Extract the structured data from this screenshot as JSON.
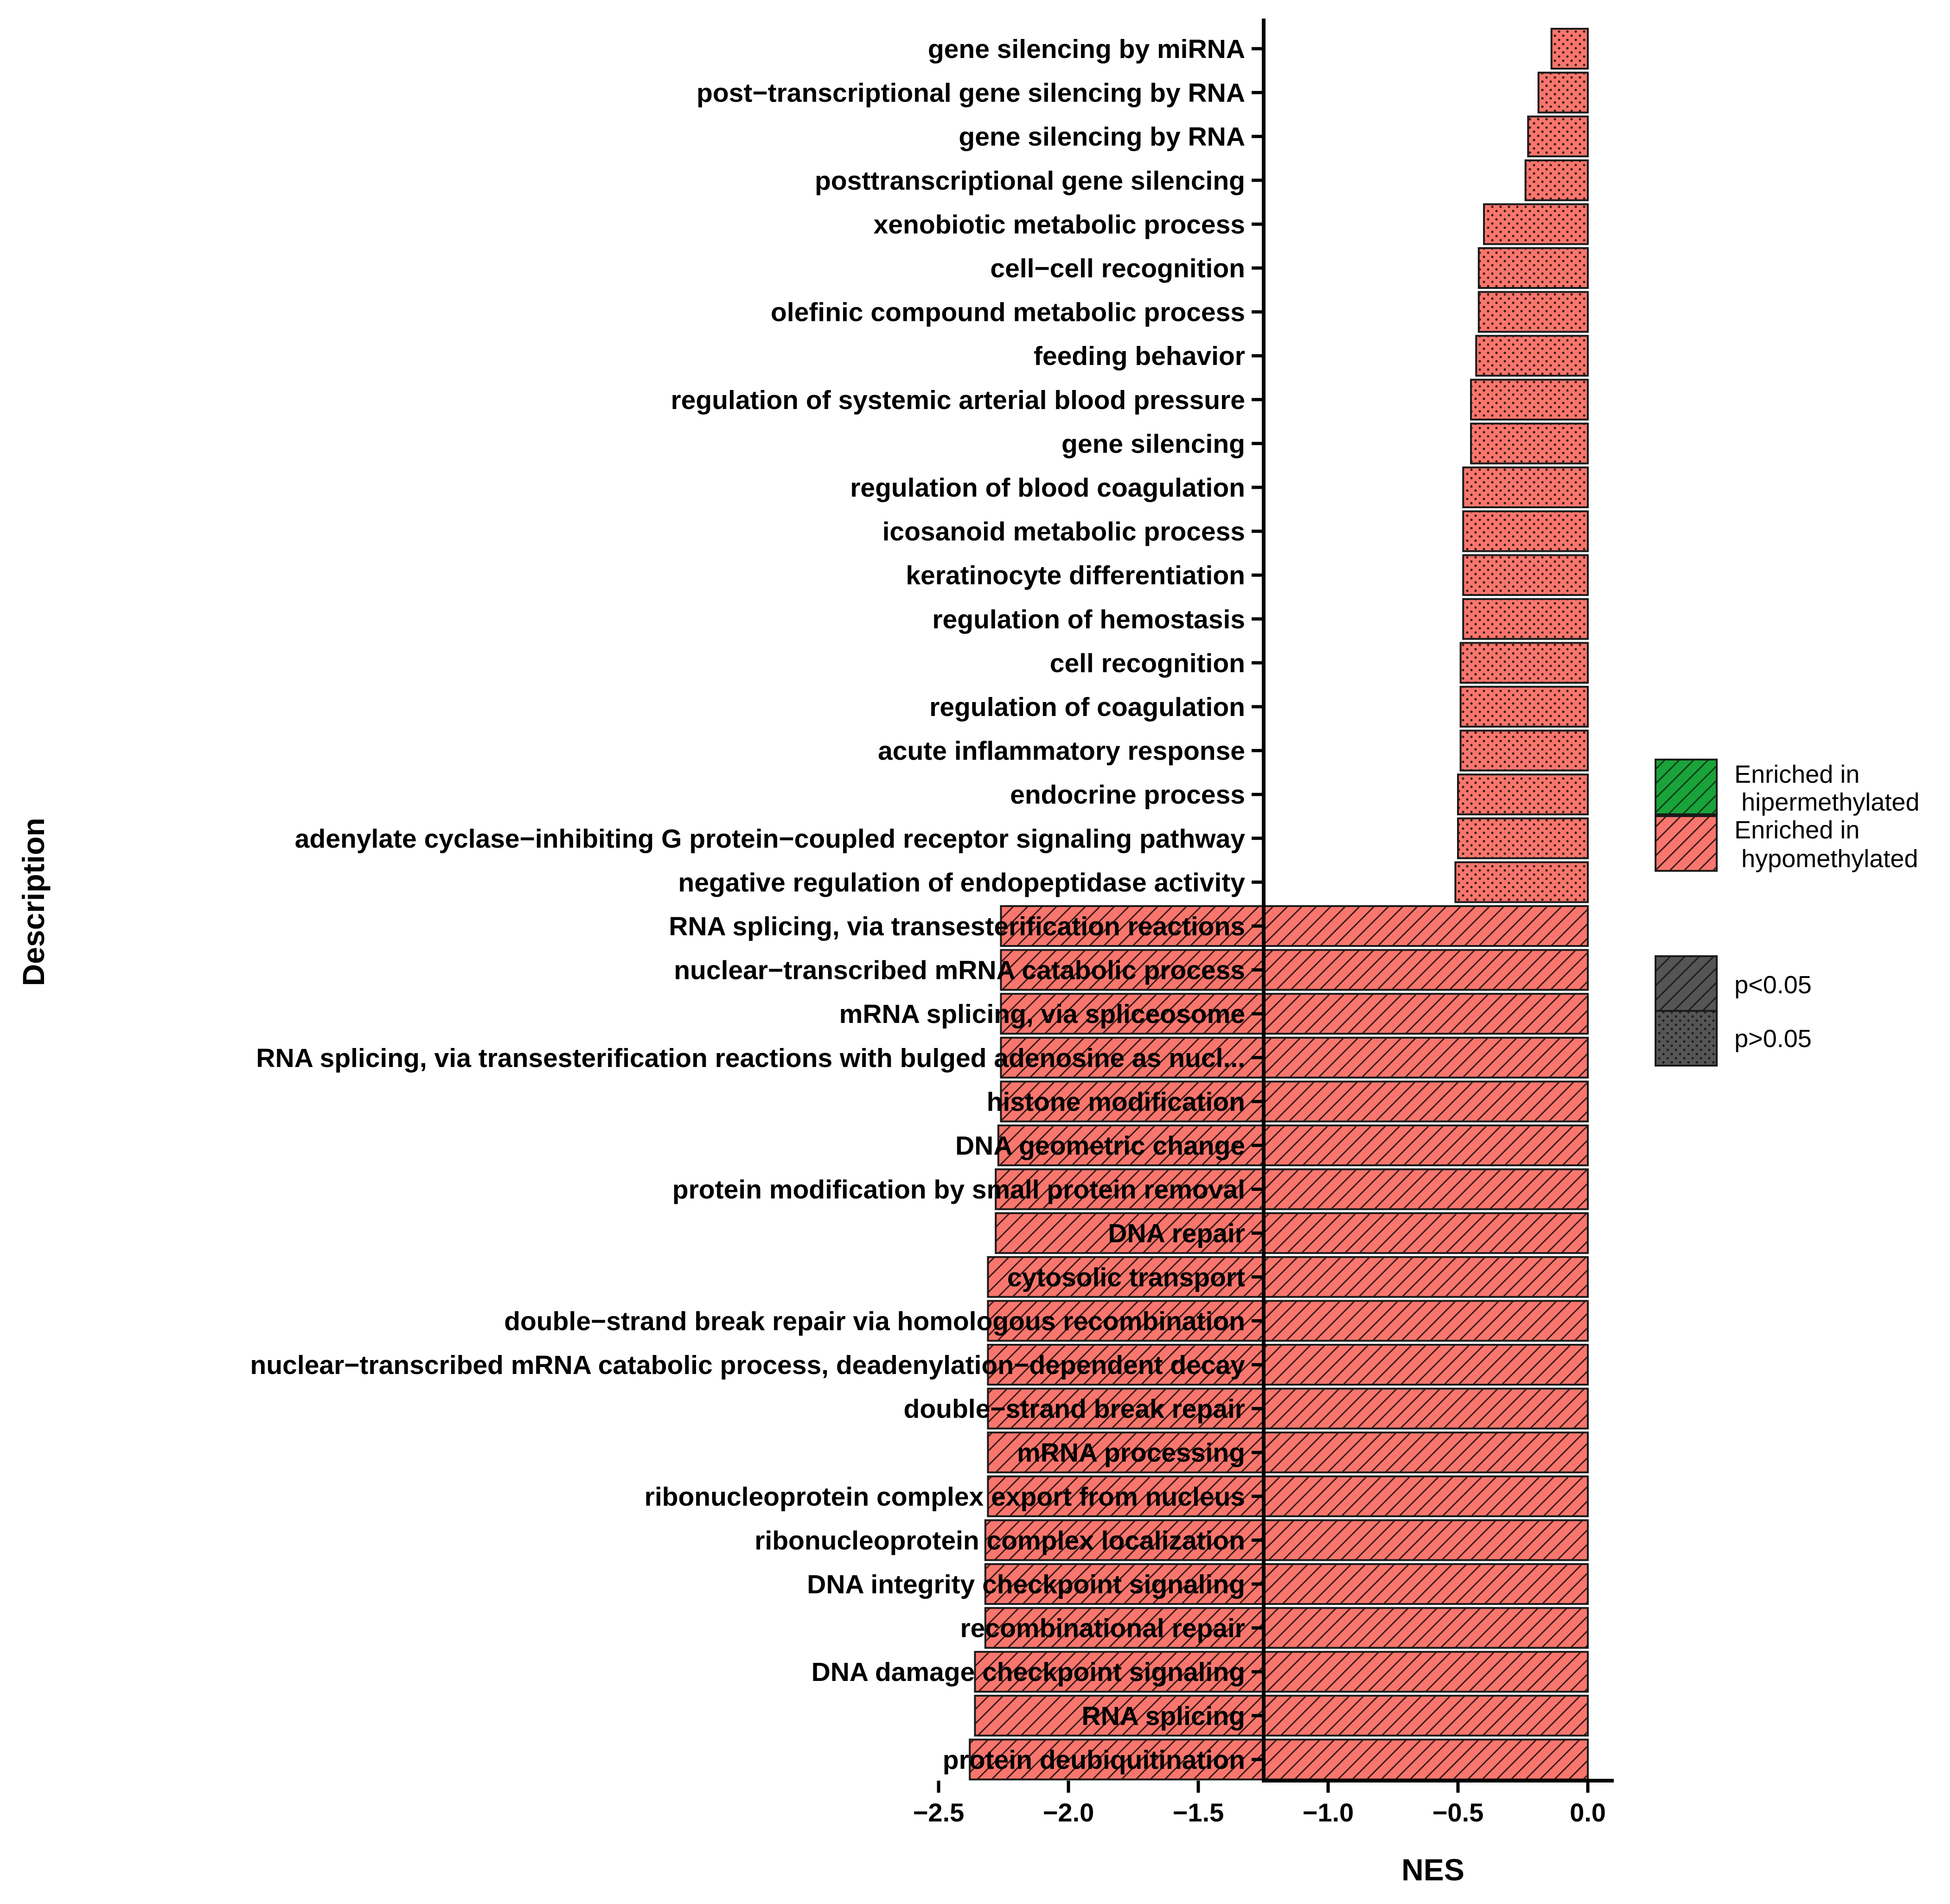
{
  "chart_data": {
    "type": "bar",
    "orientation": "horizontal",
    "xlabel": "NES",
    "ylabel": "Description",
    "xlim": [
      -2.5,
      0.1
    ],
    "x_ticks": [
      -2.5,
      -2.0,
      -1.5,
      -1.0,
      -0.5,
      0.0
    ],
    "x_tick_labels": [
      "−2.5",
      "−2.0",
      "−1.5",
      "−1.0",
      "−0.5",
      "0.0"
    ],
    "grid": false,
    "legend_position": "right",
    "colors": {
      "hypomethylated": "#f8766d",
      "hipermethylated": "#19a33a",
      "significance": "#555555",
      "outline": "#1a1a1a"
    },
    "legend": {
      "direction": [
        {
          "label_line1": "Enriched in",
          "label_line2": " hipermethylated",
          "color": "#19a33a",
          "pattern": "stripes"
        },
        {
          "label_line1": "Enriched in",
          "label_line2": " hypomethylated",
          "color": "#f8766d",
          "pattern": "stripes"
        }
      ],
      "significance": [
        {
          "label": "p<0.05",
          "pattern": "stripes"
        },
        {
          "label": "p>0.05",
          "pattern": "dots"
        }
      ]
    },
    "categories": [
      "gene silencing by miRNA",
      "post−transcriptional gene silencing by RNA",
      "gene silencing by RNA",
      "posttranscriptional gene silencing",
      "xenobiotic metabolic process",
      "cell−cell recognition",
      "olefinic compound metabolic process",
      "feeding behavior",
      "regulation of systemic arterial blood pressure",
      "gene silencing",
      "regulation of blood coagulation",
      "icosanoid metabolic process",
      "keratinocyte differentiation",
      "regulation of hemostasis",
      "cell recognition",
      "regulation of coagulation",
      "acute inflammatory response",
      "endocrine process",
      "adenylate cyclase−inhibiting G protein−coupled receptor signaling pathway",
      "negative regulation of endopeptidase activity",
      "RNA splicing, via transesterification reactions",
      "nuclear−transcribed mRNA catabolic process",
      "mRNA splicing, via spliceosome",
      "RNA splicing, via transesterification reactions with bulged adenosine as nucl...",
      "histone modification",
      "DNA geometric change",
      "protein modification by small protein removal",
      "DNA repair",
      "cytosolic transport",
      "double−strand break repair via homologous recombination",
      "nuclear−transcribed mRNA catabolic process, deadenylation−dependent decay",
      "double−strand break repair",
      "mRNA processing",
      "ribonucleoprotein complex export from nucleus",
      "ribonucleoprotein complex localization",
      "DNA integrity checkpoint signaling",
      "recombinational repair",
      "DNA damage checkpoint signaling",
      "RNA splicing",
      "protein deubiquitination"
    ],
    "values": [
      -0.14,
      -0.19,
      -0.23,
      -0.24,
      -0.4,
      -0.42,
      -0.42,
      -0.43,
      -0.45,
      -0.45,
      -0.48,
      -0.48,
      -0.48,
      -0.48,
      -0.49,
      -0.49,
      -0.49,
      -0.5,
      -0.5,
      -0.51,
      -2.26,
      -2.26,
      -2.26,
      -2.26,
      -2.26,
      -2.27,
      -2.28,
      -2.28,
      -2.31,
      -2.31,
      -2.31,
      -2.31,
      -2.31,
      -2.31,
      -2.32,
      -2.32,
      -2.32,
      -2.36,
      -2.36,
      -2.38
    ],
    "significance": [
      "p>0.05",
      "p>0.05",
      "p>0.05",
      "p>0.05",
      "p>0.05",
      "p>0.05",
      "p>0.05",
      "p>0.05",
      "p>0.05",
      "p>0.05",
      "p>0.05",
      "p>0.05",
      "p>0.05",
      "p>0.05",
      "p>0.05",
      "p>0.05",
      "p>0.05",
      "p>0.05",
      "p>0.05",
      "p>0.05",
      "p<0.05",
      "p<0.05",
      "p<0.05",
      "p<0.05",
      "p<0.05",
      "p<0.05",
      "p<0.05",
      "p<0.05",
      "p<0.05",
      "p<0.05",
      "p<0.05",
      "p<0.05",
      "p<0.05",
      "p<0.05",
      "p<0.05",
      "p<0.05",
      "p<0.05",
      "p<0.05",
      "p<0.05",
      "p<0.05"
    ],
    "enrichment": "Enriched in hypomethylated"
  }
}
